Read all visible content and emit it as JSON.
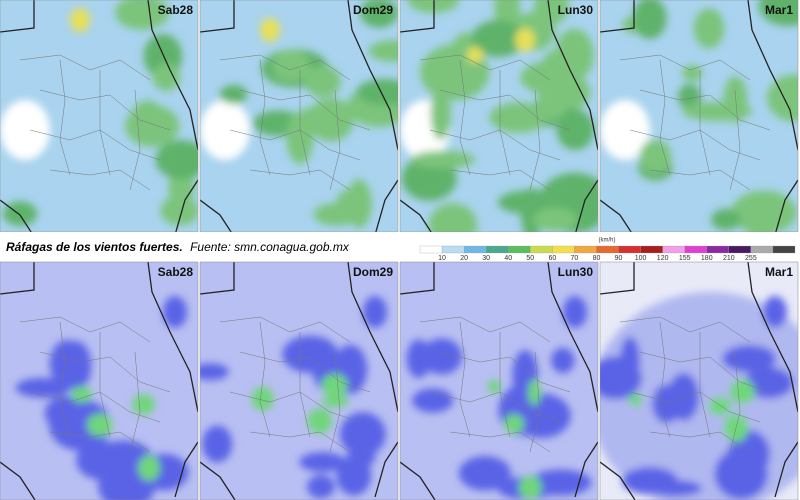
{
  "top_row": {
    "panels": [
      "Sab28",
      "Dom29",
      "Lun30",
      "Mar1"
    ]
  },
  "caption": {
    "title": "Ráfagas de los vientos fuertes.",
    "source": "Fuente: smn.conagua.gob.mx"
  },
  "legend": {
    "unit": "(km/h)",
    "ticks": [
      10,
      20,
      30,
      40,
      50,
      60,
      70,
      80,
      90,
      100,
      120,
      155,
      180,
      210,
      255
    ]
  },
  "bottom_row": {
    "panels": [
      "Sab28",
      "Dom29",
      "Lun30",
      "Mar1"
    ]
  }
}
